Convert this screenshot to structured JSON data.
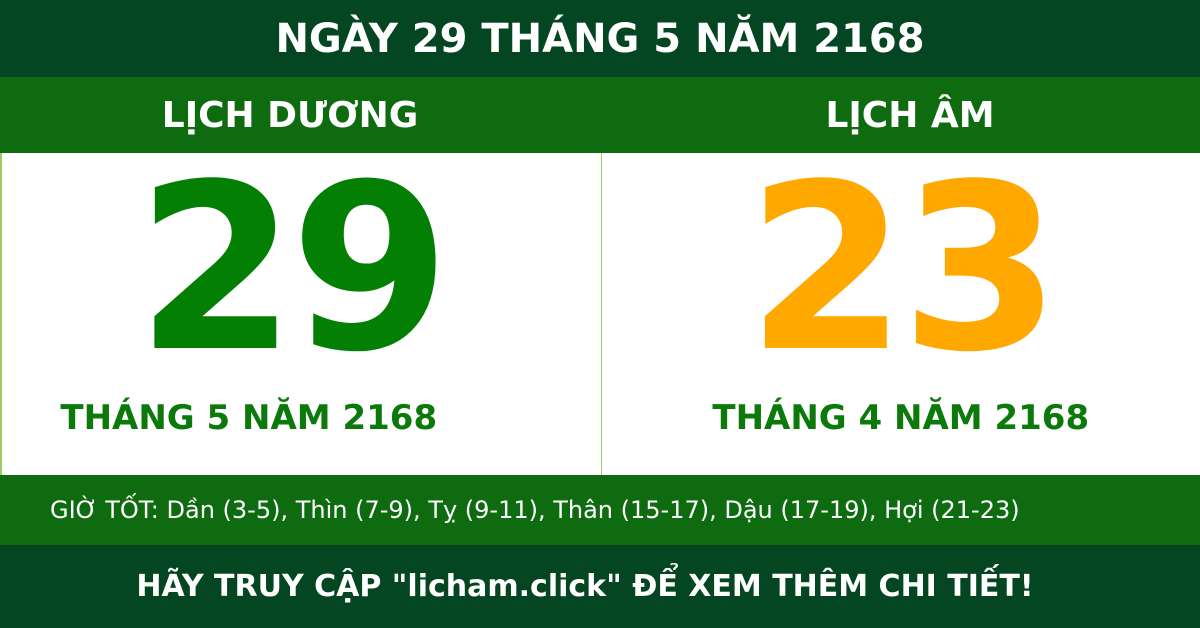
{
  "title": "NGÀY 29 THÁNG 5 NĂM 2168",
  "solar": {
    "heading": "LỊCH DƯƠNG",
    "day": "29",
    "month_year": "THÁNG 5 NĂM 2168"
  },
  "lunar": {
    "heading": "LỊCH ÂM",
    "day": "23",
    "month_year": "THÁNG 4 NĂM 2168"
  },
  "good_hours": "GIỜ TỐT: Dần (3-5), Thìn (7-9), Tỵ (9-11), Thân (15-17), Dậu (17-19), Hợi (21-23)",
  "footer": "HÃY TRUY CẬP \"licham.click\" ĐỂ XEM THÊM CHI TIẾT!",
  "colors": {
    "dark_green": "#044622",
    "green_band": "#0f6b10",
    "solar_day": "#038003",
    "lunar_day": "#ffa800"
  }
}
